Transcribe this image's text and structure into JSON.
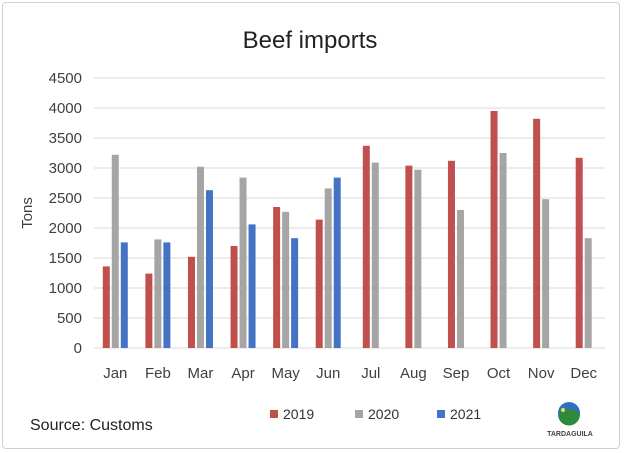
{
  "chart_data": {
    "type": "bar",
    "title": "Beef imports",
    "xlabel": "",
    "ylabel": "Tons",
    "ylim": [
      0,
      4500
    ],
    "yticks": [
      0,
      500,
      1000,
      1500,
      2000,
      2500,
      3000,
      3500,
      4000,
      4500
    ],
    "grid": true,
    "legend_position": "bottom",
    "categories": [
      "Jan",
      "Feb",
      "Mar",
      "Apr",
      "May",
      "Jun",
      "Jul",
      "Aug",
      "Sep",
      "Oct",
      "Nov",
      "Dec"
    ],
    "series": [
      {
        "name": "2019",
        "color": "#c0504d",
        "values": [
          1360,
          1240,
          1520,
          1700,
          2350,
          2140,
          3370,
          3040,
          3120,
          3950,
          3820,
          3170
        ]
      },
      {
        "name": "2020",
        "color": "#a5a5a5",
        "values": [
          3220,
          1810,
          3020,
          2840,
          2270,
          2660,
          3090,
          2970,
          2300,
          3250,
          2480,
          1830
        ]
      },
      {
        "name": "2021",
        "color": "#4472c4",
        "values": [
          1760,
          1760,
          2630,
          2060,
          1830,
          2840,
          null,
          null,
          null,
          null,
          null,
          null
        ]
      }
    ],
    "source": "Source: Customs",
    "logo": "TARDAGUILA"
  }
}
